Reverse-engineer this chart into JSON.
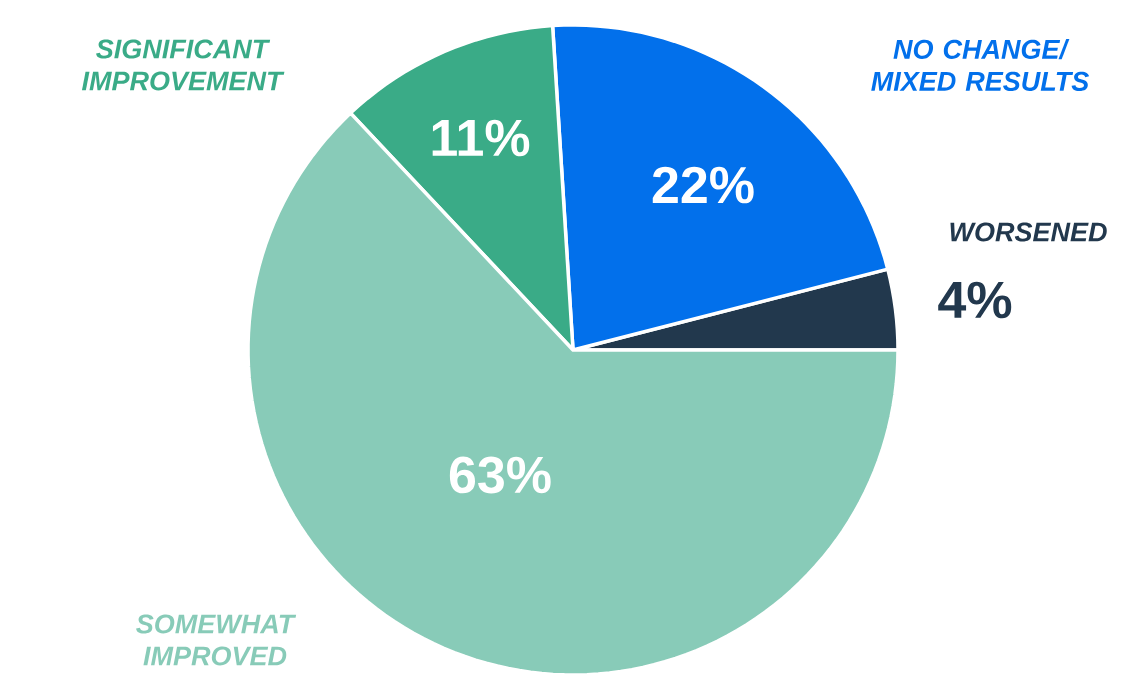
{
  "chart_data": {
    "type": "pie",
    "categories": [
      "WORSENED",
      "NO CHANGE/ MIXED RESULTS",
      "SIGNIFICANT IMPROVEMENT",
      "SOMEWHAT IMPROVED"
    ],
    "values": [
      4,
      22,
      11,
      63
    ],
    "colors": [
      "#22384d",
      "#0270eb",
      "#3aab87",
      "#88cbb8"
    ],
    "value_labels": [
      "4%",
      "22%",
      "11%",
      "63%"
    ]
  }
}
